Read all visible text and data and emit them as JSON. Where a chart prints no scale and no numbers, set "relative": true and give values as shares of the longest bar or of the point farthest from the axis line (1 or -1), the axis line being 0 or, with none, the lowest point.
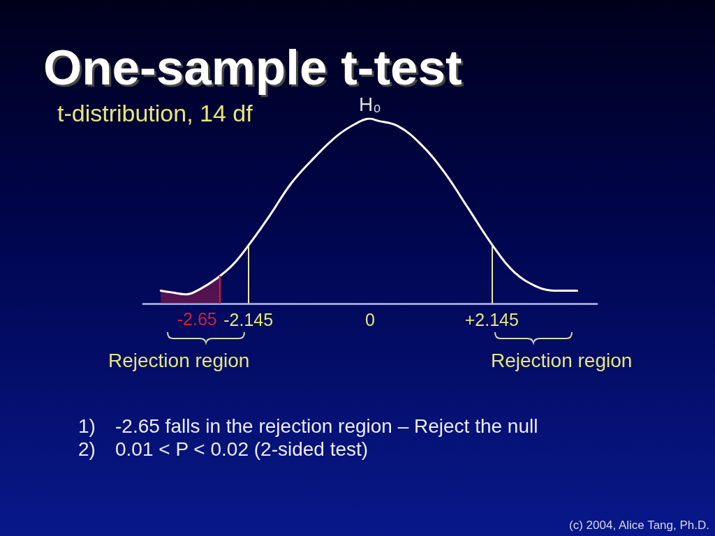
{
  "chart_data": {
    "type": "line",
    "title": "One-sample t-test",
    "subtitle": "t-distribution, 14 df",
    "relative": true,
    "xlim": [
      -4,
      4
    ],
    "xticks": [
      -2.145,
      0,
      {
        "value": 2.145,
        "label": "+2.145"
      }
    ],
    "series": [
      {
        "color": "#ffffff",
        "x": [
          -3.69,
          -3.49,
          -3.24,
          -2.99,
          -2.73,
          -2.42,
          -2.13,
          -1.76,
          -1.39,
          -0.98,
          -0.57,
          -0.21,
          0,
          0.12,
          0.49,
          0.9,
          1.31,
          1.72,
          2.17,
          2.54,
          2.95,
          3.24,
          3.65
        ],
        "values": [
          0.07,
          0.06,
          0.05,
          0.08,
          0.13,
          0.21,
          0.32,
          0.48,
          0.65,
          0.79,
          0.91,
          0.98,
          1,
          0.99,
          0.96,
          0.86,
          0.71,
          0.52,
          0.31,
          0.17,
          0.09,
          0.07,
          0.07
        ]
      },
      {
        "type": "area",
        "color": "#d02040",
        "x": [
          -3.69,
          -3.49,
          -3.24,
          -2.99,
          -2.73,
          -2.65
        ],
        "values": [
          0.07,
          0.06,
          0.05,
          0.08,
          0.13,
          0.15
        ]
      }
    ],
    "ref_lines": [
      {
        "axis": "x",
        "value": -2.65,
        "label": "-2.65",
        "color": "#d02040"
      },
      {
        "axis": "x",
        "value": -2.145,
        "color": "#e8e8a0"
      },
      {
        "axis": "x",
        "value": 2.145,
        "color": "#e8e8a0"
      }
    ],
    "annotations": [
      {
        "text": "H₀",
        "x": 0,
        "y": 1
      },
      "Rejection region",
      "Rejection region",
      "1) -2.65 falls in the rejection region – Reject the null",
      "2) 0.01 < P < 0.02 (2-sided test)",
      "(c) 2004, Alice Tang, Ph.D."
    ]
  }
}
